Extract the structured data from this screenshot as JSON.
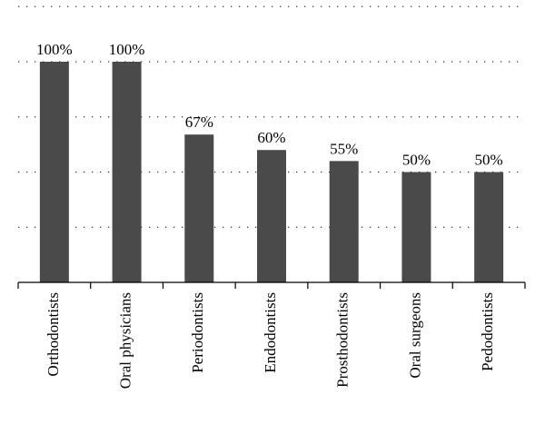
{
  "chart_data": {
    "type": "bar",
    "title": "",
    "xlabel": "",
    "ylabel": "",
    "categories": [
      "Orthodontists",
      "Oral physicians",
      "Periodontists",
      "Endodontists",
      "Prosthodontists",
      "Oral surgeons",
      "Pedodontists"
    ],
    "values": [
      100,
      100,
      67,
      60,
      55,
      50,
      50
    ],
    "data_labels": [
      "100%",
      "100%",
      "67%",
      "60%",
      "55%",
      "50%",
      "50%"
    ],
    "ylim": [
      0,
      125
    ],
    "y_gridlines": [
      25,
      50,
      75,
      100,
      125
    ],
    "grid": "dotted horizontal",
    "legend": "none",
    "bar_color": "#4a4a4a"
  }
}
